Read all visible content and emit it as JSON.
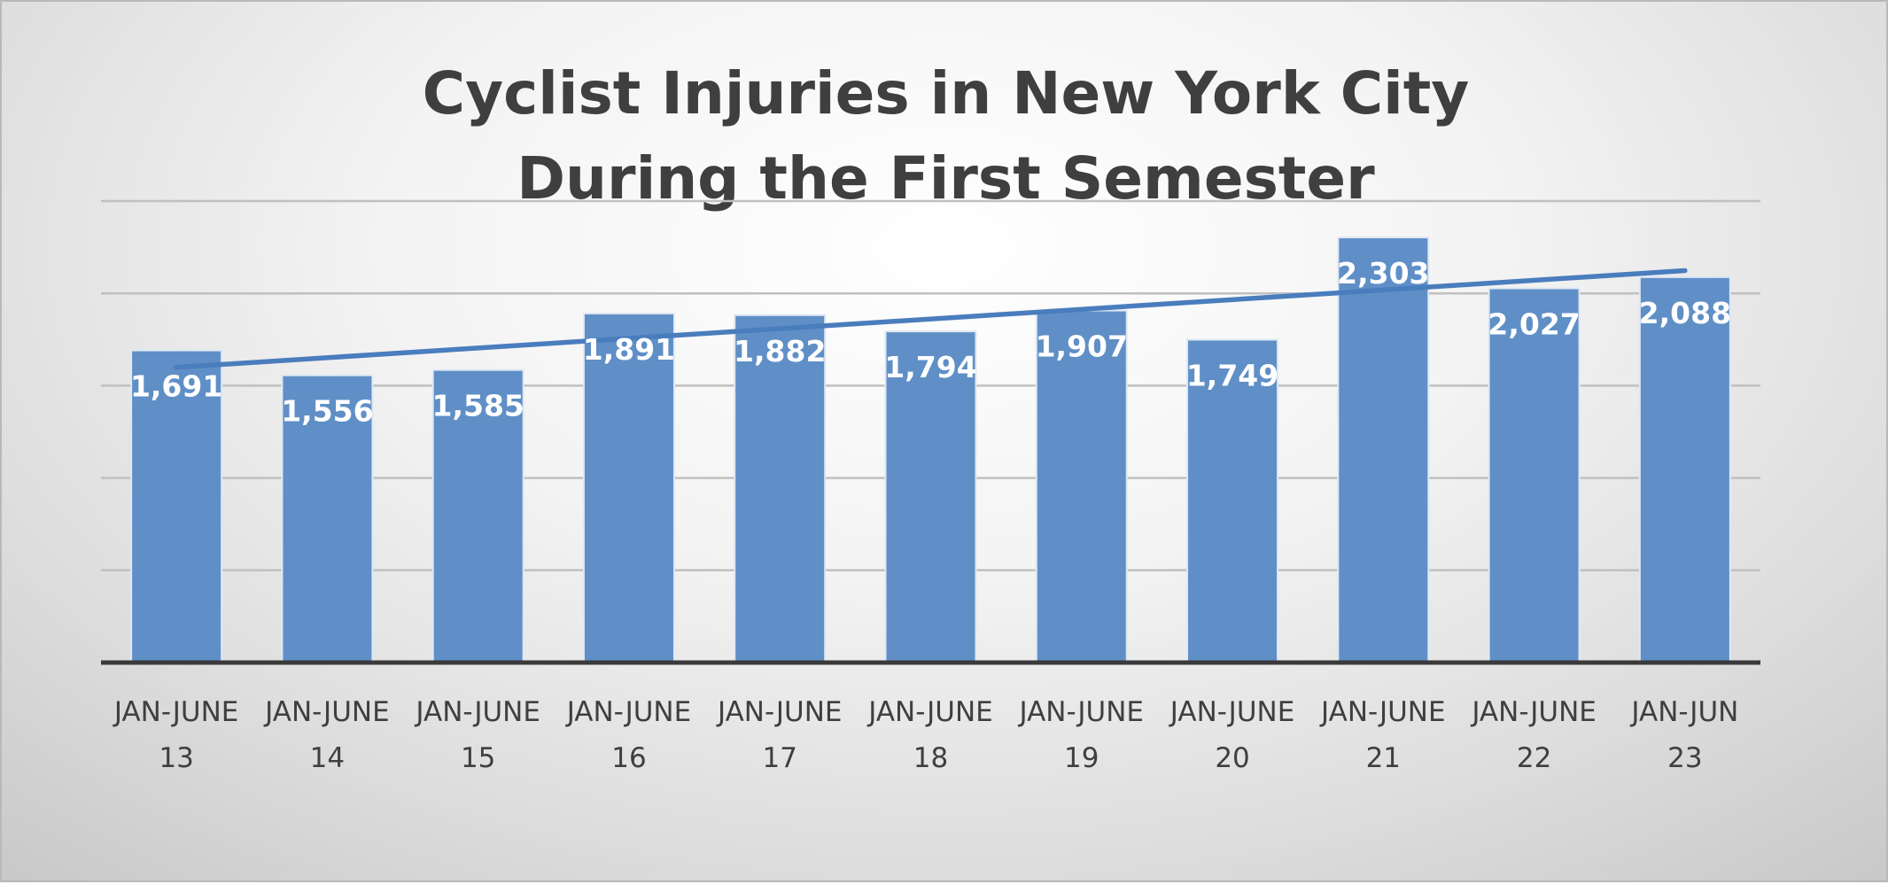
{
  "chart_data": {
    "type": "bar",
    "title": [
      "Cyclist Injuries in New York City",
      "During the First Semester"
    ],
    "categories": [
      [
        "JAN-JUNE",
        "13"
      ],
      [
        "JAN-JUNE",
        "14"
      ],
      [
        "JAN-JUNE",
        "15"
      ],
      [
        "JAN-JUNE",
        "16"
      ],
      [
        "JAN-JUNE",
        "17"
      ],
      [
        "JAN-JUNE",
        "18"
      ],
      [
        "JAN-JUNE",
        "19"
      ],
      [
        "JAN-JUNE",
        "20"
      ],
      [
        "JAN-JUNE",
        "21"
      ],
      [
        "JAN-JUNE",
        "22"
      ],
      [
        "JAN-JUN",
        "23"
      ]
    ],
    "values": [
      1691,
      1556,
      1585,
      1891,
      1882,
      1794,
      1907,
      1749,
      2303,
      2027,
      2088
    ],
    "data_labels": [
      "1,691",
      "1,556",
      "1,585",
      "1,891",
      "1,882",
      "1,794",
      "1,907",
      "1,749",
      "2,303",
      "2,027",
      "2,088"
    ],
    "ylim": [
      0,
      2500
    ],
    "gridlines": [
      500,
      1000,
      1500,
      2000,
      2500
    ],
    "y_axis_visible": false,
    "trendline": {
      "type": "linear",
      "color": "#4a7dbd"
    },
    "colors": {
      "bar": "#5f8fc6",
      "bar_border": "#dfe8f4",
      "data_label": "#ffffff",
      "axis": "#3a3a3a",
      "grid": "#c0c0c0",
      "text": "#3f3f3f"
    }
  }
}
